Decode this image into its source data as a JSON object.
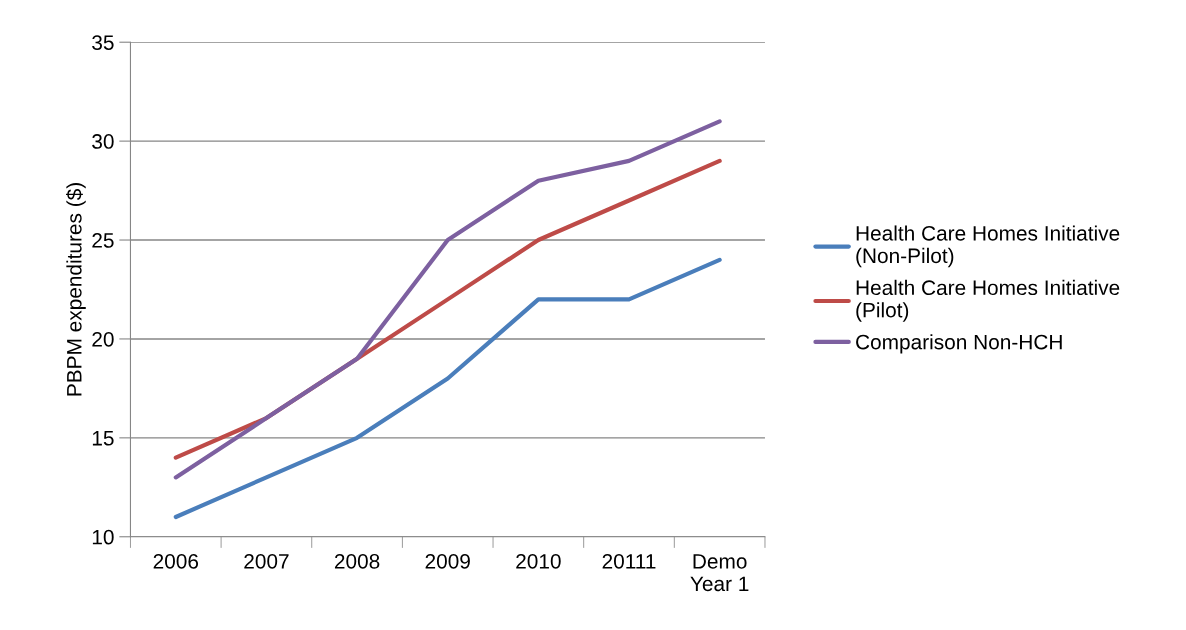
{
  "chart_data": {
    "type": "line",
    "ylabel": "PBPM expenditures ($)",
    "categories": [
      "2006",
      "2007",
      "2008",
      "2009",
      "2010",
      "20111",
      "Demo\nYear 1"
    ],
    "series": [
      {
        "name": "Health Care Homes Initiative\n(Non-Pilot)",
        "color": "#4a7ebb",
        "values": [
          11,
          13,
          15,
          18,
          22,
          22,
          24
        ]
      },
      {
        "name": "Health Care Homes Initiative\n(Pilot)",
        "color": "#be4b48",
        "values": [
          14,
          16,
          19,
          22,
          25,
          27,
          29
        ]
      },
      {
        "name": "Comparison Non-HCH",
        "color": "#7d60a0",
        "values": [
          13,
          16,
          19,
          25,
          28,
          29,
          31
        ]
      }
    ],
    "ylim": [
      10,
      35
    ],
    "yticks": [
      10,
      15,
      20,
      25,
      30,
      35
    ],
    "grid": "y",
    "legend": "right",
    "marker": "none",
    "line_style": "solid"
  }
}
